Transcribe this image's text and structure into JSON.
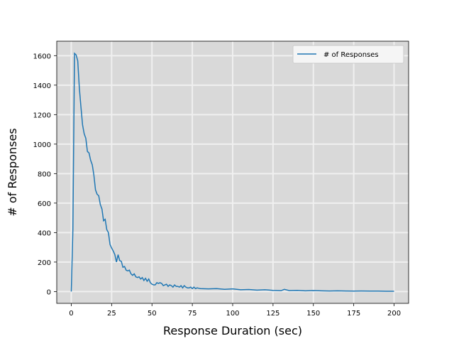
{
  "chart_data": {
    "type": "line",
    "title": "",
    "xlabel": "Response Duration (sec)",
    "ylabel": "# of Responses",
    "xlim": [
      -9,
      209
    ],
    "ylim": [
      -80,
      1698
    ],
    "xticks": [
      0,
      25,
      50,
      75,
      100,
      125,
      150,
      175,
      200
    ],
    "yticks": [
      0,
      200,
      400,
      600,
      800,
      1000,
      1200,
      1400,
      1600
    ],
    "grid": true,
    "legend_position": "top-right",
    "colors": {
      "plot_bg": "#d9d9d9",
      "grid": "#f0f0f0",
      "line": "#1f77b4"
    },
    "series": [
      {
        "name": "# of Responses",
        "x": [
          0,
          1,
          2,
          3,
          4,
          5,
          6,
          7,
          8,
          9,
          10,
          11,
          12,
          13,
          14,
          15,
          16,
          17,
          18,
          19,
          20,
          21,
          22,
          23,
          24,
          25,
          26,
          27,
          28,
          29,
          30,
          31,
          32,
          33,
          34,
          35,
          36,
          37,
          38,
          39,
          40,
          41,
          42,
          43,
          44,
          45,
          46,
          47,
          48,
          49,
          50,
          51,
          52,
          53,
          54,
          55,
          56,
          57,
          58,
          59,
          60,
          61,
          62,
          63,
          64,
          65,
          66,
          67,
          68,
          69,
          70,
          71,
          72,
          73,
          74,
          75,
          76,
          77,
          78,
          79,
          80,
          85,
          90,
          95,
          100,
          105,
          110,
          115,
          120,
          125,
          130,
          132,
          135,
          140,
          145,
          150,
          155,
          160,
          165,
          170,
          175,
          180,
          185,
          190,
          195,
          200
        ],
        "values": [
          0,
          420,
          1615,
          1605,
          1565,
          1380,
          1250,
          1130,
          1070,
          1040,
          950,
          940,
          890,
          860,
          790,
          690,
          660,
          650,
          590,
          560,
          480,
          490,
          420,
          400,
          320,
          295,
          275,
          250,
          200,
          250,
          210,
          205,
          165,
          170,
          145,
          140,
          145,
          120,
          110,
          120,
          100,
          95,
          100,
          85,
          95,
          75,
          90,
          70,
          85,
          60,
          50,
          45,
          45,
          60,
          55,
          60,
          55,
          40,
          45,
          50,
          35,
          45,
          40,
          30,
          45,
          35,
          35,
          30,
          40,
          25,
          40,
          30,
          25,
          25,
          30,
          20,
          30,
          20,
          25,
          22,
          20,
          18,
          20,
          15,
          18,
          12,
          14,
          10,
          12,
          8,
          6,
          15,
          7,
          8,
          5,
          7,
          5,
          4,
          5,
          4,
          3,
          4,
          3,
          3,
          2,
          2
        ]
      }
    ]
  }
}
